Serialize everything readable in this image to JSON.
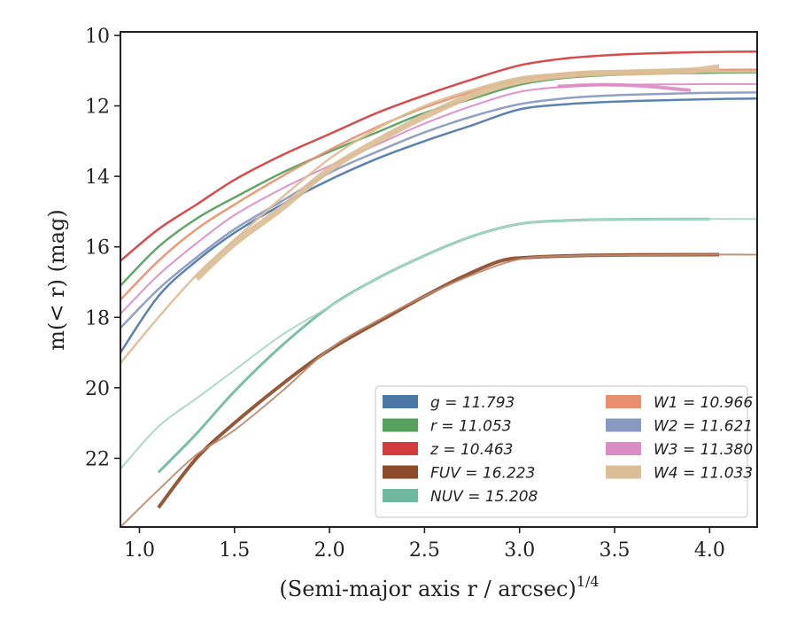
{
  "chart_data": {
    "type": "line",
    "xlabel": "(Semi-major axis r / arcsec)",
    "xlabel_superscript": "1/4",
    "ylabel": "m(< r) (mag)",
    "xlim": [
      0.9,
      4.25
    ],
    "ylim": [
      23.95,
      9.9
    ],
    "y_inverted": true,
    "grid": false,
    "legend_position": "lower-right",
    "x_ticks": [
      "1.0",
      "1.5",
      "2.0",
      "2.5",
      "3.0",
      "3.5",
      "4.0"
    ],
    "y_ticks": [
      "10",
      "12",
      "14",
      "16",
      "18",
      "20",
      "22"
    ],
    "legend": [
      {
        "label": "g = 11.793",
        "color": "#4c78a8"
      },
      {
        "label": "r = 11.053",
        "color": "#55a05a"
      },
      {
        "label": "z = 10.463",
        "color": "#d23c3c"
      },
      {
        "label": "FUV = 16.223",
        "color": "#8c4a28"
      },
      {
        "label": "NUV = 15.208",
        "color": "#6fb8a0"
      },
      {
        "label": "W1 = 10.966",
        "color": "#e8906e"
      },
      {
        "label": "W2 = 11.621",
        "color": "#8898c0"
      },
      {
        "label": "W3 = 11.380",
        "color": "#dc8cc4"
      },
      {
        "label": "W4 = 11.033",
        "color": "#dcbe96"
      }
    ],
    "series": [
      {
        "name": "g",
        "color": "#4c78a8",
        "width": 2.5,
        "x": [
          0.9,
          1.1,
          1.3,
          1.5,
          1.75,
          2.0,
          2.25,
          2.5,
          2.75,
          3.0,
          3.25,
          3.5,
          3.75,
          4.0,
          4.25
        ],
        "y": [
          19.0,
          17.4,
          16.4,
          15.6,
          14.8,
          14.1,
          13.5,
          13.0,
          12.55,
          12.1,
          11.95,
          11.88,
          11.84,
          11.81,
          11.79
        ]
      },
      {
        "name": "r",
        "color": "#55a05a",
        "width": 2.5,
        "x": [
          0.9,
          1.1,
          1.3,
          1.5,
          1.75,
          2.0,
          2.25,
          2.5,
          2.75,
          3.0,
          3.25,
          3.5,
          3.75,
          4.0,
          4.25
        ],
        "y": [
          17.1,
          16.0,
          15.2,
          14.6,
          13.9,
          13.3,
          12.75,
          12.2,
          11.8,
          11.4,
          11.2,
          11.12,
          11.08,
          11.06,
          11.05
        ]
      },
      {
        "name": "z",
        "color": "#d23c3c",
        "width": 2.5,
        "x": [
          0.9,
          1.1,
          1.3,
          1.5,
          1.75,
          2.0,
          2.25,
          2.5,
          2.75,
          3.0,
          3.25,
          3.5,
          3.75,
          4.0,
          4.25
        ],
        "y": [
          16.4,
          15.5,
          14.8,
          14.1,
          13.4,
          12.8,
          12.2,
          11.7,
          11.25,
          10.85,
          10.65,
          10.55,
          10.5,
          10.47,
          10.46
        ]
      },
      {
        "name": "FUV",
        "color": "#8c4a28",
        "width": 4.0,
        "x": [
          1.1,
          1.3,
          1.5,
          1.75,
          1.95,
          2.1,
          2.3,
          2.5,
          2.7,
          2.9,
          3.05,
          3.3,
          3.6,
          4.05
        ],
        "y": [
          23.4,
          22.0,
          21.0,
          19.9,
          19.1,
          18.6,
          18.0,
          17.4,
          16.85,
          16.4,
          16.3,
          16.25,
          16.23,
          16.22
        ]
      },
      {
        "name": "FUV-extended",
        "color": "#bb8a70",
        "width": 2.0,
        "x": [
          0.9,
          1.1,
          1.3,
          1.5,
          1.75,
          2.0,
          2.25,
          2.5,
          2.75,
          3.0,
          3.25,
          3.5,
          4.0,
          4.25
        ],
        "y": [
          23.95,
          22.9,
          21.9,
          21.2,
          20.1,
          18.9,
          18.1,
          17.4,
          16.8,
          16.35,
          16.26,
          16.24,
          16.22,
          16.22
        ]
      },
      {
        "name": "NUV",
        "color": "#6fb8a0",
        "width": 3.0,
        "x": [
          1.1,
          1.3,
          1.5,
          1.75,
          2.0,
          2.25,
          2.5,
          2.75,
          3.0,
          3.25,
          3.5,
          4.0
        ],
        "y": [
          22.4,
          21.3,
          20.1,
          18.8,
          17.7,
          16.9,
          16.25,
          15.7,
          15.35,
          15.25,
          15.22,
          15.21
        ]
      },
      {
        "name": "NUV-extended",
        "color": "#a8d6c6",
        "width": 2.0,
        "x": [
          0.9,
          1.1,
          1.3,
          1.5,
          1.75,
          2.0,
          2.25,
          2.5,
          2.75,
          3.0,
          3.25,
          3.5,
          4.0,
          4.25
        ],
        "y": [
          22.3,
          21.1,
          20.3,
          19.5,
          18.5,
          17.7,
          16.9,
          16.25,
          15.7,
          15.35,
          15.25,
          15.22,
          15.21,
          15.21
        ]
      },
      {
        "name": "W1",
        "color": "#e8906e",
        "width": 2.5,
        "x": [
          0.9,
          1.1,
          1.3,
          1.5,
          1.75,
          2.0,
          2.25,
          2.5,
          2.75,
          3.0,
          3.25,
          3.5,
          3.75,
          4.0,
          4.25
        ],
        "y": [
          17.5,
          16.4,
          15.5,
          14.8,
          14.0,
          13.25,
          12.6,
          12.05,
          11.6,
          11.25,
          11.1,
          11.03,
          11.0,
          10.98,
          10.97
        ]
      },
      {
        "name": "W2",
        "color": "#8898c0",
        "width": 2.5,
        "x": [
          0.9,
          1.1,
          1.3,
          1.5,
          1.75,
          2.0,
          2.25,
          2.5,
          2.75,
          3.0,
          3.25,
          3.5,
          3.75,
          4.0,
          4.25
        ],
        "y": [
          18.3,
          17.2,
          16.3,
          15.5,
          14.7,
          13.9,
          13.3,
          12.75,
          12.3,
          11.95,
          11.78,
          11.7,
          11.66,
          11.63,
          11.62
        ]
      },
      {
        "name": "W3",
        "color": "#dc8cc4",
        "width": 2.0,
        "x": [
          0.9,
          1.1,
          1.3,
          1.5,
          1.75,
          2.0,
          2.25,
          2.5,
          2.75,
          3.0,
          3.25,
          3.5,
          3.75,
          4.0,
          4.25
        ],
        "y": [
          17.9,
          16.8,
          15.9,
          15.1,
          14.35,
          13.7,
          13.1,
          12.5,
          12.0,
          11.6,
          11.45,
          11.4,
          11.39,
          11.38,
          11.38
        ]
      },
      {
        "name": "W3-band",
        "color": "#dc8cc4",
        "width": 4.0,
        "x": [
          3.2,
          3.4,
          3.6,
          3.75,
          3.9
        ],
        "y": [
          11.45,
          11.4,
          11.42,
          11.48,
          11.56
        ]
      },
      {
        "name": "W4",
        "color": "#dcbe96",
        "width": 2.5,
        "x": [
          0.9,
          1.1,
          1.3,
          1.5,
          1.75,
          2.0,
          2.25,
          2.5,
          2.75,
          3.0,
          3.25,
          3.5,
          3.75,
          4.0,
          4.25
        ],
        "y": [
          19.3,
          18.0,
          16.8,
          15.8,
          14.6,
          13.5,
          12.65,
          12.0,
          11.55,
          11.2,
          11.08,
          11.05,
          11.04,
          11.03,
          11.03
        ]
      },
      {
        "name": "W4-band",
        "color": "#dcbe96",
        "width": 7.0,
        "x": [
          1.3,
          1.5,
          1.75,
          2.0,
          2.25,
          2.5,
          2.75,
          3.0,
          3.3,
          3.6,
          3.9,
          4.05
        ],
        "y": [
          16.9,
          15.9,
          14.9,
          13.8,
          13.0,
          12.3,
          11.7,
          11.3,
          11.1,
          11.05,
          11.0,
          10.9
        ]
      }
    ]
  }
}
